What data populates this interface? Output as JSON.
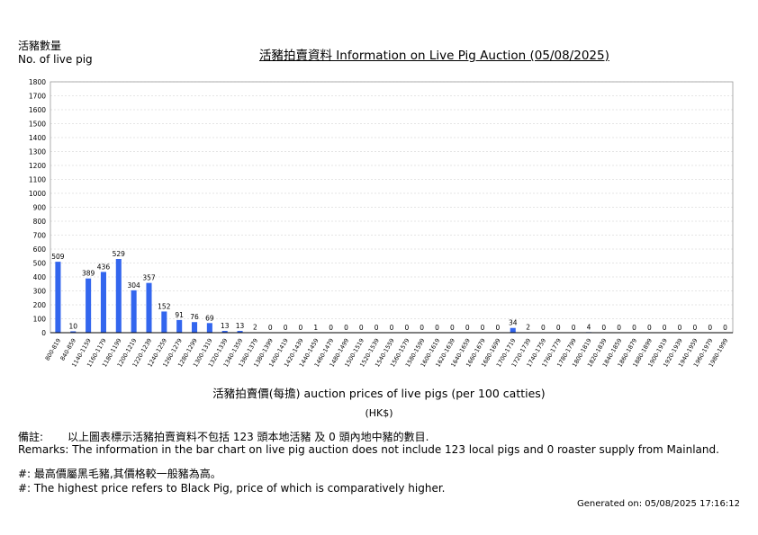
{
  "labels": {
    "y_label_zh": "活豬數量",
    "y_label_en": "No. of live pig",
    "x_axis_title": "活豬拍賣價(每擔) auction prices of live pigs (per 100 catties)",
    "unit": "(HK$)",
    "remarks_zh_label": "備註:",
    "remarks_zh_text": "以上圖表標示活豬拍賣資料不包括 123 頭本地活豬 及 0 頭內地中豬的數目.",
    "remarks_en": "Remarks: The information in the bar chart on live pig auction does not include 123 local pigs and 0 roaster supply from Mainland.",
    "note_zh": "#: 最高價屬黑毛豬,其價格較一般豬為高。",
    "note_en": "#: The highest price refers to Black Pig, price of which is comparatively higher.",
    "generated": "Generated on: 05/08/2025 17:16:12"
  },
  "chart_data": {
    "type": "bar",
    "title": "活豬拍賣資料 Information on Live Pig Auction (05/08/2025)",
    "ylabel": "活豬數量 No. of live pig",
    "xlabel": "活豬拍賣價(每擔) auction prices of live pigs (per 100 catties)",
    "ylim": [
      0,
      1800
    ],
    "yticks": [
      0,
      100,
      200,
      300,
      400,
      500,
      600,
      700,
      800,
      900,
      1000,
      1100,
      1200,
      1300,
      1400,
      1500,
      1600,
      1700,
      1800
    ],
    "grid": true,
    "bar_color": "#3366ee",
    "categories": [
      "800-819",
      "840-859",
      "1140-1159",
      "1160-1179",
      "1180-1199",
      "1200-1219",
      "1220-1239",
      "1240-1259",
      "1260-1279",
      "1280-1299",
      "1300-1319",
      "1320-1339",
      "1340-1359",
      "1360-1379",
      "1380-1399",
      "1400-1419",
      "1420-1439",
      "1440-1459",
      "1460-1479",
      "1480-1499",
      "1500-1519",
      "1520-1539",
      "1540-1559",
      "1560-1579",
      "1580-1599",
      "1600-1619",
      "1620-1639",
      "1640-1659",
      "1660-1679",
      "1680-1699",
      "1700-1719",
      "1720-1739",
      "1740-1759",
      "1760-1779",
      "1780-1799",
      "1800-1819",
      "1820-1839",
      "1840-1859",
      "1860-1879",
      "1880-1899",
      "1900-1919",
      "1920-1939",
      "1940-1959",
      "1960-1979",
      "1980-1999"
    ],
    "values": [
      509,
      10,
      389,
      436,
      529,
      304,
      357,
      152,
      91,
      76,
      69,
      13,
      13,
      2,
      0,
      0,
      0,
      1,
      0,
      0,
      0,
      0,
      0,
      0,
      0,
      0,
      0,
      0,
      0,
      0,
      34,
      2,
      0,
      0,
      0,
      4,
      0,
      0,
      0,
      0,
      0,
      0,
      0,
      0,
      0
    ]
  }
}
